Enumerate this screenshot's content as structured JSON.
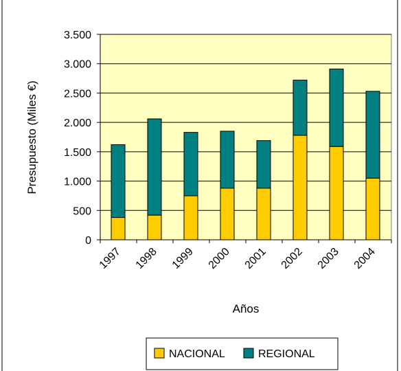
{
  "chart_data": {
    "type": "bar",
    "stacked": true,
    "title": "",
    "xlabel": "Años",
    "ylabel": "Presupuesto (Miles €)",
    "categories": [
      "1997",
      "1998",
      "1999",
      "2000",
      "2001",
      "2002",
      "2003",
      "2004"
    ],
    "series": [
      {
        "name": "NACIONAL",
        "color": "#FFCC00",
        "values": [
          380,
          420,
          750,
          880,
          880,
          1780,
          1590,
          1050
        ]
      },
      {
        "name": "REGIONAL",
        "color": "#008080",
        "values": [
          1240,
          1640,
          1080,
          970,
          810,
          940,
          1320,
          1480
        ]
      }
    ],
    "ylim": [
      0,
      3500
    ],
    "yticks": [
      0,
      500,
      1000,
      1500,
      2000,
      2500,
      3000,
      3500
    ],
    "ytick_labels": [
      "0",
      "500",
      "1.000",
      "1.500",
      "2.000",
      "2.500",
      "3.000",
      "3.500"
    ],
    "grid": true,
    "legend_position": "bottom",
    "plot_background": "#FFFFC0"
  }
}
